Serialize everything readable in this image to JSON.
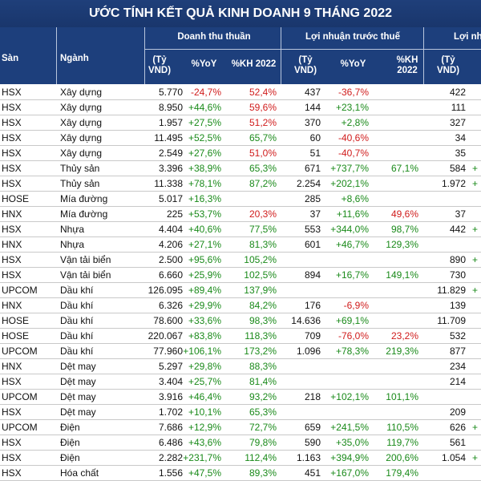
{
  "title": "ƯỚC TÍNH KẾT QUẢ KINH DOANH 9 THÁNG 2022",
  "header": {
    "group1": "Doanh thu thuần",
    "group2": "Lợi nhuận trước thuế",
    "group3": "Lợi nh",
    "col_san": "Sàn",
    "col_nganh": "Ngành",
    "unit": "(Tỷ\nVND)",
    "yoy": "%YoY",
    "kh2022": "%KH 2022",
    "kh_wrap": "%KH\n2022",
    "unit3": "(Tỷ\nVND)"
  },
  "rows": [
    {
      "san": "HSX",
      "nganh": "Xây dựng",
      "dt": "5.770",
      "dt_yoy": "-24,7%",
      "dt_kh": "52,4%",
      "ln": "437",
      "ln_yoy": "-36,7%",
      "ln_kh": "",
      "ln3": "422",
      "cut": ""
    },
    {
      "san": "HSX",
      "nganh": "Xây dựng",
      "dt": "8.950",
      "dt_yoy": "+44,6%",
      "dt_kh": "59,6%",
      "ln": "144",
      "ln_yoy": "+23,1%",
      "ln_kh": "",
      "ln3": "111",
      "cut": ""
    },
    {
      "san": "HSX",
      "nganh": "Xây dựng",
      "dt": "1.957",
      "dt_yoy": "+27,5%",
      "dt_kh": "51,2%",
      "ln": "370",
      "ln_yoy": "+2,8%",
      "ln_kh": "",
      "ln3": "327",
      "cut": ""
    },
    {
      "san": "HSX",
      "nganh": "Xây dựng",
      "dt": "11.495",
      "dt_yoy": "+52,5%",
      "dt_kh": "65,7%",
      "ln": "60",
      "ln_yoy": "-40,6%",
      "ln_kh": "",
      "ln3": "34",
      "cut": ""
    },
    {
      "san": "HSX",
      "nganh": "Xây dựng",
      "dt": "2.549",
      "dt_yoy": "+27,6%",
      "dt_kh": "51,0%",
      "ln": "51",
      "ln_yoy": "-40,7%",
      "ln_kh": "",
      "ln3": "35",
      "cut": ""
    },
    {
      "san": "HSX",
      "nganh": "Thủy sản",
      "dt": "3.396",
      "dt_yoy": "+38,9%",
      "dt_kh": "65,3%",
      "ln": "671",
      "ln_yoy": "+737,7%",
      "ln_kh": "67,1%",
      "ln3": "584",
      "cut": "+"
    },
    {
      "san": "HSX",
      "nganh": "Thủy sản",
      "dt": "11.338",
      "dt_yoy": "+78,1%",
      "dt_kh": "87,2%",
      "ln": "2.254",
      "ln_yoy": "+202,1%",
      "ln_kh": "",
      "ln3": "1.972",
      "cut": "+"
    },
    {
      "san": "HOSE",
      "nganh": "Mía đường",
      "dt": "5.017",
      "dt_yoy": "+16,3%",
      "dt_kh": "",
      "ln": "285",
      "ln_yoy": "+8,6%",
      "ln_kh": "",
      "ln3": "",
      "cut": ""
    },
    {
      "san": "HNX",
      "nganh": "Mía đường",
      "dt": "225",
      "dt_yoy": "+53,7%",
      "dt_kh": "20,3%",
      "ln": "37",
      "ln_yoy": "+11,6%",
      "ln_kh": "49,6%",
      "ln3": "37",
      "cut": ""
    },
    {
      "san": "HSX",
      "nganh": "Nhựa",
      "dt": "4.404",
      "dt_yoy": "+40,6%",
      "dt_kh": "77,5%",
      "ln": "553",
      "ln_yoy": "+344,0%",
      "ln_kh": "98,7%",
      "ln3": "442",
      "cut": "+"
    },
    {
      "san": "HNX",
      "nganh": "Nhựa",
      "dt": "4.206",
      "dt_yoy": "+27,1%",
      "dt_kh": "81,3%",
      "ln": "601",
      "ln_yoy": "+46,7%",
      "ln_kh": "129,3%",
      "ln3": "",
      "cut": ""
    },
    {
      "san": "HSX",
      "nganh": "Vận tải biển",
      "dt": "2.500",
      "dt_yoy": "+95,6%",
      "dt_kh": "105,2%",
      "ln": "",
      "ln_yoy": "",
      "ln_kh": "",
      "ln3": "890",
      "cut": "+"
    },
    {
      "san": "HSX",
      "nganh": "Vận tải biển",
      "dt": "6.660",
      "dt_yoy": "+25,9%",
      "dt_kh": "102,5%",
      "ln": "894",
      "ln_yoy": "+16,7%",
      "ln_kh": "149,1%",
      "ln3": "730",
      "cut": ""
    },
    {
      "san": "UPCOM",
      "nganh": "Dầu khí",
      "dt": "126.095",
      "dt_yoy": "+89,4%",
      "dt_kh": "137,9%",
      "ln": "",
      "ln_yoy": "",
      "ln_kh": "",
      "ln3": "11.829",
      "cut": "+"
    },
    {
      "san": "HNX",
      "nganh": "Dầu khí",
      "dt": "6.326",
      "dt_yoy": "+29,9%",
      "dt_kh": "84,2%",
      "ln": "176",
      "ln_yoy": "-6,9%",
      "ln_kh": "",
      "ln3": "139",
      "cut": ""
    },
    {
      "san": "HOSE",
      "nganh": "Dầu khí",
      "dt": "78.600",
      "dt_yoy": "+33,6%",
      "dt_kh": "98,3%",
      "ln": "14.636",
      "ln_yoy": "+69,1%",
      "ln_kh": "",
      "ln3": "11.709",
      "cut": ""
    },
    {
      "san": "HOSE",
      "nganh": "Dầu khí",
      "dt": "220.067",
      "dt_yoy": "+83,8%",
      "dt_kh": "118,3%",
      "ln": "709",
      "ln_yoy": "-76,0%",
      "ln_kh": "23,2%",
      "ln3": "532",
      "cut": ""
    },
    {
      "san": "UPCOM",
      "nganh": "Dầu khí",
      "dt": "77.960",
      "dt_yoy": "+106,1%",
      "dt_kh": "173,2%",
      "ln": "1.096",
      "ln_yoy": "+78,3%",
      "ln_kh": "219,3%",
      "ln3": "877",
      "cut": ""
    },
    {
      "san": "HNX",
      "nganh": "Dệt may",
      "dt": "5.297",
      "dt_yoy": "+29,8%",
      "dt_kh": "88,3%",
      "ln": "",
      "ln_yoy": "",
      "ln_kh": "",
      "ln3": "234",
      "cut": ""
    },
    {
      "san": "HSX",
      "nganh": "Dệt may",
      "dt": "3.404",
      "dt_yoy": "+25,7%",
      "dt_kh": "81,4%",
      "ln": "",
      "ln_yoy": "",
      "ln_kh": "",
      "ln3": "214",
      "cut": ""
    },
    {
      "san": "UPCOM",
      "nganh": "Dệt may",
      "dt": "3.916",
      "dt_yoy": "+46,4%",
      "dt_kh": "93,2%",
      "ln": "218",
      "ln_yoy": "+102,1%",
      "ln_kh": "101,1%",
      "ln3": "",
      "cut": ""
    },
    {
      "san": "HSX",
      "nganh": "Dệt may",
      "dt": "1.702",
      "dt_yoy": "+10,1%",
      "dt_kh": "65,3%",
      "ln": "",
      "ln_yoy": "",
      "ln_kh": "",
      "ln3": "209",
      "cut": ""
    },
    {
      "san": "UPCOM",
      "nganh": "Điện",
      "dt": "7.686",
      "dt_yoy": "+12,9%",
      "dt_kh": "72,7%",
      "ln": "659",
      "ln_yoy": "+241,5%",
      "ln_kh": "110,5%",
      "ln3": "626",
      "cut": "+"
    },
    {
      "san": "HSX",
      "nganh": "Điện",
      "dt": "6.486",
      "dt_yoy": "+43,6%",
      "dt_kh": "79,8%",
      "ln": "590",
      "ln_yoy": "+35,0%",
      "ln_kh": "119,7%",
      "ln3": "561",
      "cut": ""
    },
    {
      "san": "HSX",
      "nganh": "Điện",
      "dt": "2.282",
      "dt_yoy": "+231,7%",
      "dt_kh": "112,4%",
      "ln": "1.163",
      "ln_yoy": "+394,9%",
      "ln_kh": "200,6%",
      "ln3": "1.054",
      "cut": "+"
    },
    {
      "san": "HSX",
      "nganh": "Hóa chất",
      "dt": "1.556",
      "dt_yoy": "+47,5%",
      "dt_kh": "89,3%",
      "ln": "451",
      "ln_yoy": "+167,0%",
      "ln_kh": "179,4%",
      "ln3": "",
      "cut": ""
    }
  ],
  "colors": {
    "header_bg": "#1d3f7c",
    "negative": "#d01c1c",
    "positive": "#1a8a1a",
    "kh_low": "#d01c1c"
  }
}
